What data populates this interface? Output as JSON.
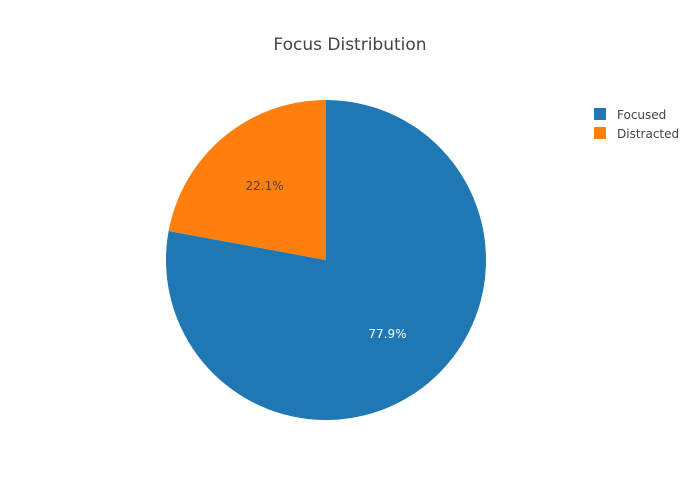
{
  "chart_data": {
    "type": "pie",
    "title": "Focus Distribution",
    "labels": [
      "Focused",
      "Distracted"
    ],
    "values": [
      77.9,
      22.1
    ],
    "value_labels": [
      "77.9%",
      "22.1%"
    ],
    "colors": [
      "#1f77b4",
      "#ff7f0e"
    ],
    "label_colors": [
      "#ffffff",
      "#444444"
    ],
    "direction": "clockwise",
    "start_angle": 90,
    "legend": {
      "position": "top-right",
      "entries": [
        "Focused",
        "Distracted"
      ]
    }
  }
}
